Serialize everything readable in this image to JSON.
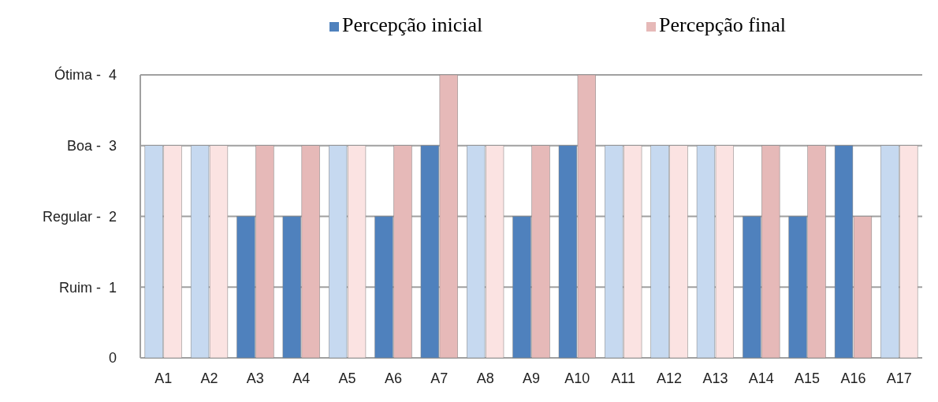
{
  "chart_data": {
    "type": "bar",
    "categories": [
      "A1",
      "A2",
      "A3",
      "A4",
      "A5",
      "A6",
      "A7",
      "A8",
      "A9",
      "A10",
      "A11",
      "A12",
      "A13",
      "A14",
      "A15",
      "A16",
      "A17"
    ],
    "series": [
      {
        "name": "Percepção inicial",
        "color": "#4f81bd",
        "colors": [
          "#c6d9f0",
          "#c6d9f0",
          "#4f81bd",
          "#4f81bd",
          "#c6d9f0",
          "#4f81bd",
          "#4f81bd",
          "#c6d9f0",
          "#4f81bd",
          "#4f81bd",
          "#c6d9f0",
          "#c6d9f0",
          "#c6d9f0",
          "#4f81bd",
          "#4f81bd",
          "#4f81bd",
          "#c6d9f0"
        ],
        "values": [
          3,
          3,
          2,
          2,
          3,
          2,
          3,
          3,
          2,
          3,
          3,
          3,
          3,
          2,
          2,
          3,
          3
        ]
      },
      {
        "name": "Percepção final",
        "color": "#e6b9b8",
        "colors": [
          "#fbe3e2",
          "#fbe3e2",
          "#e6b9b8",
          "#e6b9b8",
          "#fbe3e2",
          "#e6b9b8",
          "#e6b9b8",
          "#fbe3e2",
          "#e6b9b8",
          "#e6b9b8",
          "#fbe3e2",
          "#fbe3e2",
          "#fbe3e2",
          "#e6b9b8",
          "#e6b9b8",
          "#e6b9b8",
          "#fbe3e2"
        ],
        "values": [
          3,
          3,
          3,
          3,
          3,
          3,
          4,
          3,
          3,
          4,
          3,
          3,
          3,
          3,
          3,
          2,
          3
        ]
      }
    ],
    "ylim": [
      0,
      4
    ],
    "yticks": [
      0,
      1,
      2,
      3,
      4
    ],
    "annotations": [
      "Ruim -",
      "Regular -",
      "Boa -",
      "Ótima -"
    ],
    "grid": "y",
    "legend": "top"
  }
}
